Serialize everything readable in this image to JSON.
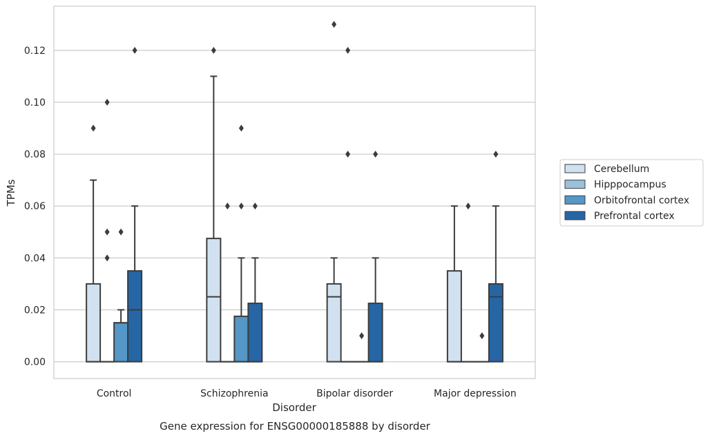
{
  "chart_data": {
    "type": "boxplot",
    "xlabel": "Disorder",
    "ylabel": "TPMs",
    "caption": "Gene expression for ENSG00000185888 by disorder",
    "ylim": [
      -0.0065,
      0.137
    ],
    "yticks": [
      "0.00",
      "0.02",
      "0.04",
      "0.06",
      "0.08",
      "0.10",
      "0.12"
    ],
    "ytick_values": [
      0,
      0.02,
      0.04,
      0.06,
      0.08,
      0.1,
      0.12
    ],
    "grid": true,
    "legend_position": "right",
    "categories": [
      "Control",
      "Schizophrenia",
      "Bipolar disorder",
      "Major depression"
    ],
    "series": [
      {
        "name": "Cerebellum",
        "color": "#d1e1ef",
        "boxes": [
          {
            "min": 0,
            "q1": 0,
            "median": 0,
            "q3": 0.03,
            "max": 0.07,
            "outliers": [
              0.09
            ]
          },
          {
            "min": 0,
            "q1": 0,
            "median": 0.025,
            "q3": 0.0475,
            "max": 0.11,
            "outliers": [
              0.12
            ]
          },
          {
            "min": 0,
            "q1": 0,
            "median": 0.025,
            "q3": 0.03,
            "max": 0.04,
            "outliers": [
              0.13
            ]
          },
          {
            "min": 0,
            "q1": 0,
            "median": 0,
            "q3": 0.035,
            "max": 0.06,
            "outliers": []
          }
        ]
      },
      {
        "name": "Hipppocampus",
        "color": "#9ac1dc",
        "boxes": [
          {
            "min": 0,
            "q1": 0,
            "median": 0,
            "q3": 0,
            "max": 0,
            "outliers": [
              0.04,
              0.05,
              0.1
            ]
          },
          {
            "min": 0,
            "q1": 0,
            "median": 0,
            "q3": 0,
            "max": 0,
            "outliers": [
              0.06
            ]
          },
          {
            "min": 0,
            "q1": 0,
            "median": 0,
            "q3": 0,
            "max": 0,
            "outliers": [
              0.08,
              0.12
            ]
          },
          {
            "min": 0,
            "q1": 0,
            "median": 0,
            "q3": 0,
            "max": 0,
            "outliers": [
              0.06
            ]
          }
        ]
      },
      {
        "name": "Orbitofrontal cortex",
        "color": "#5597c6",
        "boxes": [
          {
            "min": 0,
            "q1": 0,
            "median": 0.015,
            "q3": 0.015,
            "max": 0.02,
            "outliers": [
              0.05
            ]
          },
          {
            "min": 0,
            "q1": 0,
            "median": 0,
            "q3": 0.0175,
            "max": 0.04,
            "outliers": [
              0.06,
              0.09
            ]
          },
          {
            "min": 0,
            "q1": 0,
            "median": 0,
            "q3": 0,
            "max": 0,
            "outliers": [
              0.01
            ]
          },
          {
            "min": 0,
            "q1": 0,
            "median": 0,
            "q3": 0,
            "max": 0,
            "outliers": [
              0.01
            ]
          }
        ]
      },
      {
        "name": "Prefrontal cortex",
        "color": "#2666a5",
        "boxes": [
          {
            "min": 0,
            "q1": 0,
            "median": 0.02,
            "q3": 0.035,
            "max": 0.06,
            "outliers": [
              0.12
            ]
          },
          {
            "min": 0,
            "q1": 0,
            "median": 0,
            "q3": 0.0225,
            "max": 0.04,
            "outliers": [
              0.06
            ]
          },
          {
            "min": 0,
            "q1": 0,
            "median": 0,
            "q3": 0.0225,
            "max": 0.04,
            "outliers": [
              0.08
            ]
          },
          {
            "min": 0,
            "q1": 0,
            "median": 0.025,
            "q3": 0.03,
            "max": 0.06,
            "outliers": [
              0.08
            ]
          }
        ]
      }
    ]
  }
}
